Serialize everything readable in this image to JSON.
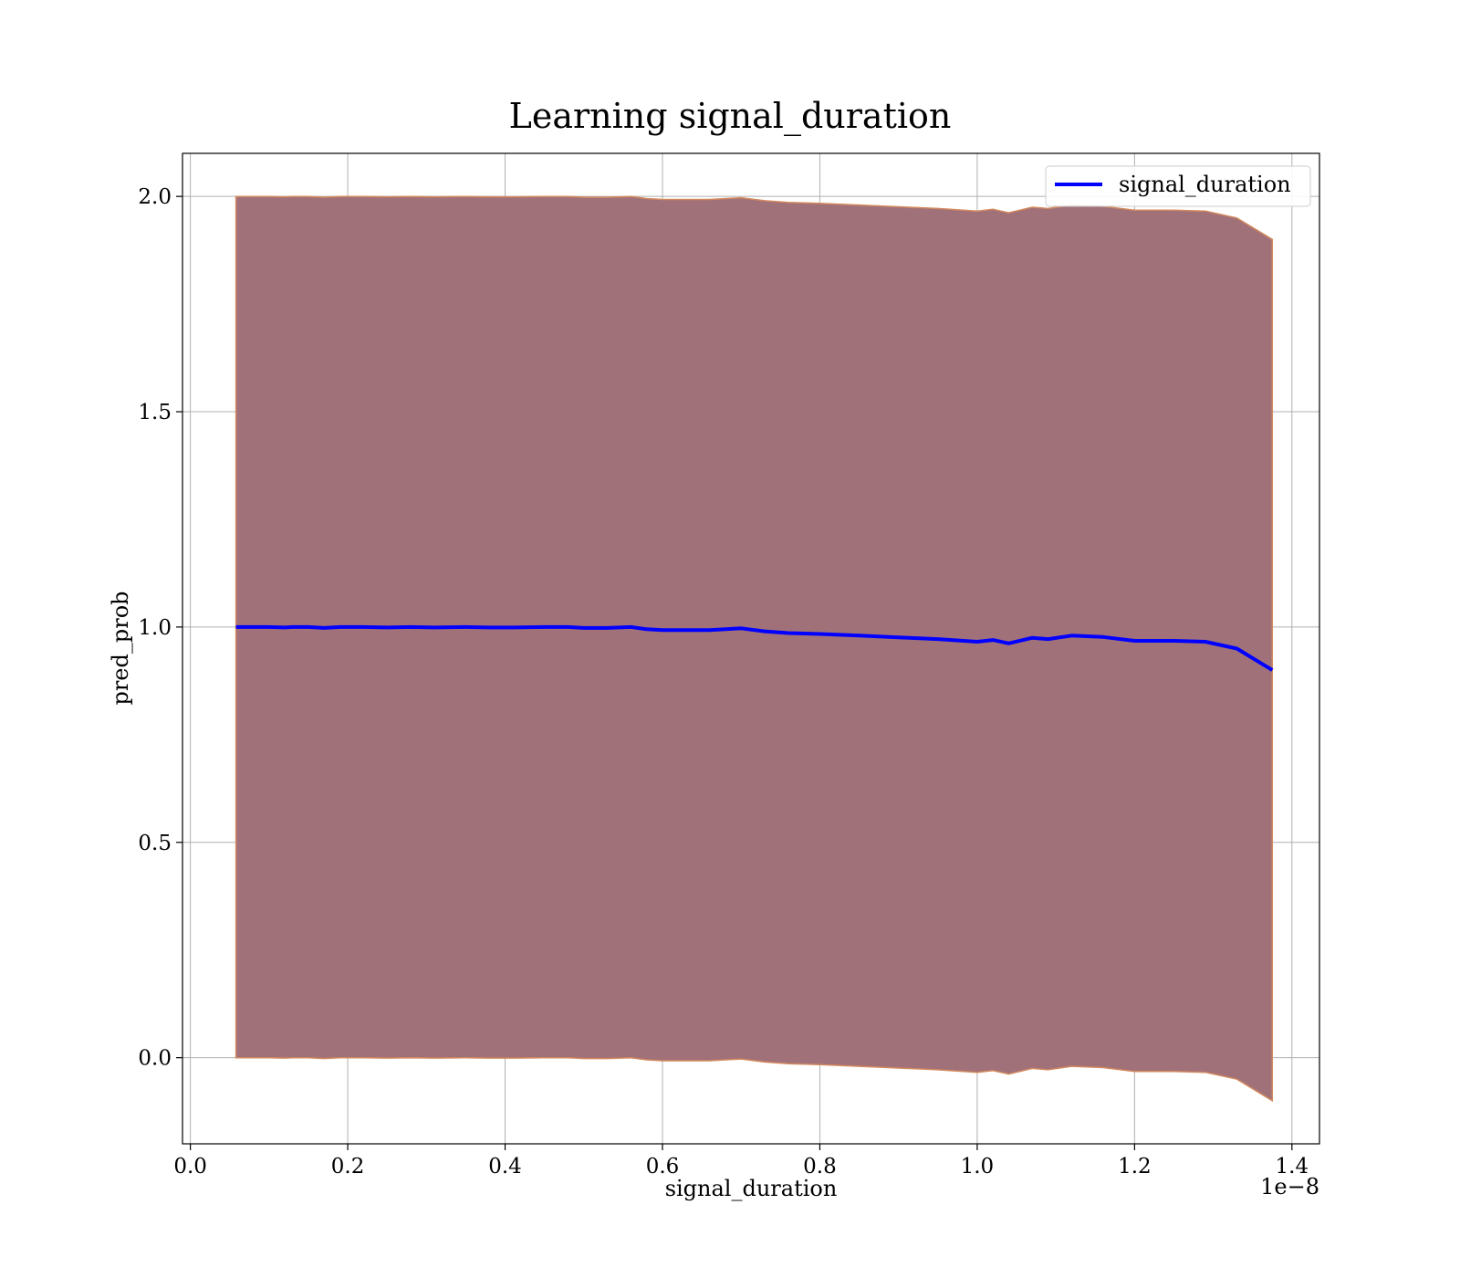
{
  "chart_data": {
    "type": "line",
    "title": "Learning signal_duration",
    "xlabel": "signal_duration",
    "ylabel": "pred_prob",
    "x_offset_label": "1e−8",
    "x_ticks": [
      "0.0",
      "0.2",
      "0.4",
      "0.6",
      "0.8",
      "1.0",
      "1.2",
      "1.4"
    ],
    "y_ticks": [
      "0.0",
      "0.5",
      "1.0",
      "1.5",
      "2.0"
    ],
    "xlim": [
      -0.01,
      1.435
    ],
    "ylim": [
      -0.2,
      2.1
    ],
    "grid": true,
    "legend": {
      "position": "top-right",
      "entries": [
        "signal_duration"
      ]
    },
    "x_scale": "1e-8",
    "series": [
      {
        "name": "signal_duration",
        "color": "#0000ff",
        "x": [
          0.058,
          0.07,
          0.1,
          0.12,
          0.13,
          0.15,
          0.17,
          0.19,
          0.22,
          0.25,
          0.28,
          0.31,
          0.35,
          0.38,
          0.41,
          0.45,
          0.48,
          0.5,
          0.53,
          0.56,
          0.58,
          0.6,
          0.63,
          0.66,
          0.68,
          0.7,
          0.73,
          0.76,
          0.8,
          0.85,
          0.9,
          0.95,
          1.0,
          1.02,
          1.04,
          1.07,
          1.09,
          1.12,
          1.16,
          1.2,
          1.25,
          1.29,
          1.33,
          1.375
        ],
        "values": [
          1.0,
          1.0,
          1.0,
          0.999,
          1.0,
          1.0,
          0.998,
          1.0,
          1.0,
          0.999,
          1.0,
          0.999,
          1.0,
          0.999,
          0.999,
          1.0,
          1.0,
          0.998,
          0.998,
          1.0,
          0.995,
          0.993,
          0.993,
          0.993,
          0.995,
          0.997,
          0.99,
          0.986,
          0.984,
          0.98,
          0.976,
          0.972,
          0.966,
          0.97,
          0.962,
          0.975,
          0.972,
          0.98,
          0.977,
          0.968,
          0.968,
          0.966,
          0.95,
          0.9
        ]
      }
    ],
    "band": {
      "color": "#a1717a",
      "edge_color": "#d2895e",
      "upper": [
        2.0,
        2.0,
        2.0,
        1.999,
        2.0,
        2.0,
        1.998,
        2.0,
        2.0,
        1.999,
        2.0,
        1.999,
        2.0,
        1.999,
        1.999,
        2.0,
        2.0,
        1.998,
        1.998,
        2.0,
        1.995,
        1.993,
        1.993,
        1.993,
        1.995,
        1.997,
        1.99,
        1.986,
        1.984,
        1.98,
        1.976,
        1.972,
        1.966,
        1.97,
        1.962,
        1.975,
        1.972,
        1.98,
        1.977,
        1.968,
        1.968,
        1.966,
        1.95,
        1.9
      ],
      "lower": [
        0.0,
        0.0,
        0.0,
        -0.001,
        0.0,
        0.0,
        -0.002,
        0.0,
        0.0,
        -0.001,
        0.0,
        -0.001,
        0.0,
        -0.001,
        -0.001,
        0.0,
        0.0,
        -0.002,
        -0.002,
        0.0,
        -0.005,
        -0.007,
        -0.007,
        -0.007,
        -0.005,
        -0.003,
        -0.01,
        -0.014,
        -0.016,
        -0.02,
        -0.024,
        -0.028,
        -0.034,
        -0.03,
        -0.038,
        -0.025,
        -0.028,
        -0.02,
        -0.023,
        -0.032,
        -0.032,
        -0.034,
        -0.05,
        -0.1
      ]
    }
  }
}
